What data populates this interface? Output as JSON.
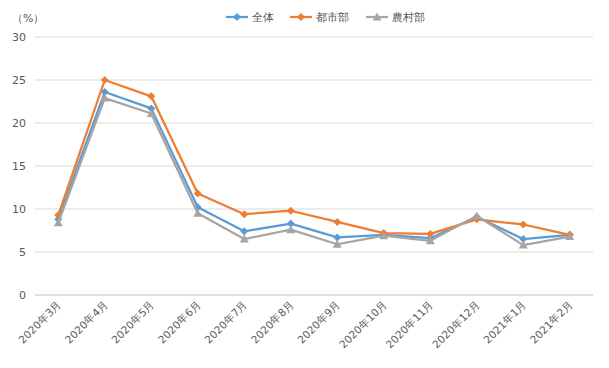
{
  "chart_data": {
    "type": "line",
    "ylabel": "（%）",
    "categories": [
      "2020年3月",
      "2020年4月",
      "2020年5月",
      "2020年6月",
      "2020年7月",
      "2020年8月",
      "2020年9月",
      "2020年10月",
      "2020年11月",
      "2020年12月",
      "2021年1月",
      "2021年2月"
    ],
    "series": [
      {
        "name": "全体",
        "color": "#5b9bd5",
        "marker": "diamond",
        "values": [
          8.8,
          23.6,
          21.7,
          10.2,
          7.4,
          8.3,
          6.7,
          7.0,
          6.6,
          9.1,
          6.5,
          7.0
        ]
      },
      {
        "name": "都市部",
        "color": "#ed7d31",
        "marker": "diamond",
        "values": [
          9.3,
          25.0,
          23.1,
          11.8,
          9.4,
          9.8,
          8.5,
          7.2,
          7.1,
          8.8,
          8.2,
          7.0
        ]
      },
      {
        "name": "農村部",
        "color": "#a5a5a5",
        "marker": "triangle",
        "values": [
          8.4,
          22.9,
          21.1,
          9.5,
          6.5,
          7.6,
          5.9,
          6.9,
          6.3,
          9.2,
          5.8,
          6.8
        ]
      }
    ],
    "ylim": [
      0,
      30
    ],
    "yticks": [
      0,
      5,
      10,
      15,
      20,
      25,
      30
    ],
    "grid": true,
    "legend": "top"
  }
}
